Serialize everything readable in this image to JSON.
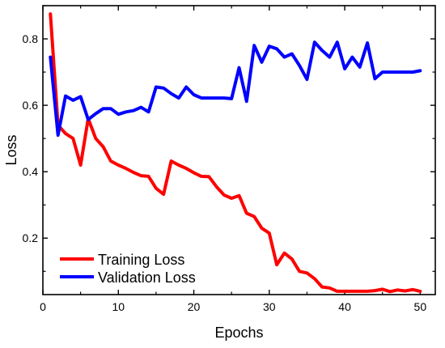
{
  "chart_data": {
    "type": "line",
    "xlabel": "Epochs",
    "ylabel": "Loss",
    "xlim": [
      0,
      52
    ],
    "ylim": [
      0.03,
      0.9
    ],
    "xticks": [
      0,
      10,
      20,
      30,
      40,
      50
    ],
    "yticks": [
      0.2,
      0.4,
      0.6,
      0.8
    ],
    "ytick_labels": [
      "0.2",
      "0.4",
      "0.6",
      "0.8"
    ],
    "grid": false,
    "legend_position": "bottom-left",
    "x": [
      1,
      2,
      3,
      4,
      5,
      6,
      7,
      8,
      9,
      10,
      11,
      12,
      13,
      14,
      15,
      16,
      17,
      18,
      19,
      20,
      21,
      22,
      23,
      24,
      25,
      26,
      27,
      28,
      29,
      30,
      31,
      32,
      33,
      34,
      35,
      36,
      37,
      38,
      39,
      40,
      41,
      42,
      43,
      44,
      45,
      46,
      47,
      48,
      49,
      50
    ],
    "series": [
      {
        "name": "Training Loss",
        "color": "#ff0000",
        "values": [
          0.875,
          0.54,
          0.515,
          0.5,
          0.42,
          0.56,
          0.5,
          0.475,
          0.432,
          0.42,
          0.41,
          0.398,
          0.388,
          0.386,
          0.35,
          0.332,
          0.432,
          0.42,
          0.41,
          0.397,
          0.386,
          0.385,
          0.355,
          0.33,
          0.32,
          0.328,
          0.275,
          0.265,
          0.23,
          0.215,
          0.12,
          0.155,
          0.137,
          0.1,
          0.095,
          0.078,
          0.053,
          0.05,
          0.04,
          0.04,
          0.04,
          0.04,
          0.04,
          0.042,
          0.046,
          0.039,
          0.044,
          0.041,
          0.045,
          0.04
        ]
      },
      {
        "name": "Validation Loss",
        "color": "#0000ff",
        "values": [
          0.745,
          0.51,
          0.628,
          0.615,
          0.626,
          0.557,
          0.575,
          0.59,
          0.59,
          0.573,
          0.58,
          0.584,
          0.594,
          0.58,
          0.655,
          0.652,
          0.635,
          0.622,
          0.655,
          0.632,
          0.622,
          0.622,
          0.622,
          0.622,
          0.62,
          0.713,
          0.612,
          0.78,
          0.73,
          0.778,
          0.77,
          0.745,
          0.755,
          0.72,
          0.678,
          0.79,
          0.765,
          0.745,
          0.79,
          0.71,
          0.745,
          0.715,
          0.788,
          0.68,
          0.7,
          0.7,
          0.7,
          0.7,
          0.7,
          0.704
        ]
      }
    ]
  }
}
